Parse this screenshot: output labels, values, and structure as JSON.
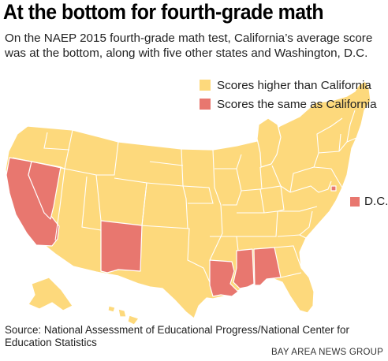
{
  "title": "At the bottom for fourth-grade math",
  "subtitle": "On the NAEP 2015 fourth-grade math test, California’s average score was at the bottom, along with five other states and Washington, D.C.",
  "legend": [
    {
      "label": "Scores higher than California",
      "color": "#FDD97C"
    },
    {
      "label": "Scores the same as California",
      "color": "#E8776F"
    }
  ],
  "dc_label": "D.C.",
  "colors": {
    "higher": "#FDD97C",
    "same": "#E8776F",
    "border": "#ffffff"
  },
  "states_same_as_california": [
    "California",
    "Nevada",
    "New Mexico",
    "Louisiana",
    "Mississippi",
    "Alabama",
    "Washington, D.C."
  ],
  "source": "Source: National Assessment of Educational Progress/National Center for Education Statistics",
  "credit": "BAY AREA NEWS GROUP"
}
